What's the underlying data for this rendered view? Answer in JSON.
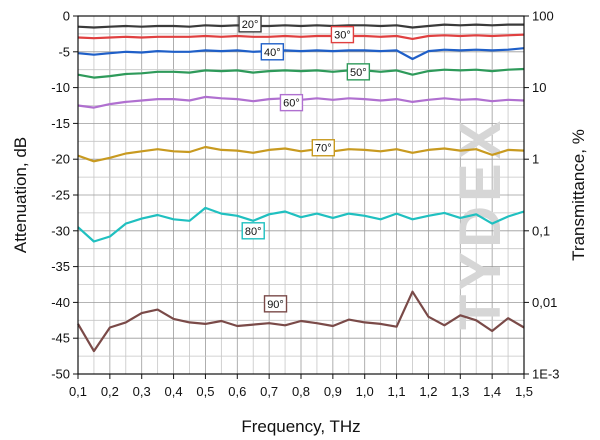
{
  "chart_data": {
    "type": "line",
    "xlabel": "Frequency, THz",
    "ylabel": "Attenuation, dB",
    "y2label": "Transmittance, %",
    "xlim": [
      0.1,
      1.5
    ],
    "ylim": [
      -50,
      0
    ],
    "x_ticks": [
      "0,1",
      "0,2",
      "0,3",
      "0,4",
      "0,5",
      "0,6",
      "0,7",
      "0,8",
      "0,9",
      "1,0",
      "1,1",
      "1,2",
      "1,3",
      "1,4",
      "1,5"
    ],
    "y_ticks": [
      "0",
      "-5",
      "-10",
      "-15",
      "-20",
      "-25",
      "-30",
      "-35",
      "-40",
      "-45",
      "-50"
    ],
    "y2_ticks": [
      "100",
      "10",
      "1",
      "0,1",
      "0,01",
      "1E-3"
    ],
    "grid": true,
    "watermark": "TYDEX",
    "x": [
      0.1,
      0.15,
      0.2,
      0.25,
      0.3,
      0.35,
      0.4,
      0.45,
      0.5,
      0.55,
      0.6,
      0.65,
      0.7,
      0.75,
      0.8,
      0.85,
      0.9,
      0.95,
      1.0,
      1.05,
      1.1,
      1.15,
      1.2,
      1.25,
      1.3,
      1.35,
      1.4,
      1.45,
      1.5
    ],
    "series": [
      {
        "name": "20°",
        "color": "#3a3a3a",
        "values": [
          -1.5,
          -1.6,
          -1.5,
          -1.4,
          -1.5,
          -1.4,
          -1.4,
          -1.5,
          -1.3,
          -1.4,
          -1.3,
          -1.4,
          -1.4,
          -1.3,
          -1.4,
          -1.3,
          -1.4,
          -1.3,
          -1.3,
          -1.4,
          -1.3,
          -1.6,
          -1.4,
          -1.2,
          -1.3,
          -1.2,
          -1.3,
          -1.2,
          -1.2
        ]
      },
      {
        "name": "30°",
        "color": "#e04040",
        "values": [
          -3.0,
          -3.1,
          -3.0,
          -2.9,
          -3.0,
          -2.9,
          -2.9,
          -2.9,
          -2.8,
          -2.9,
          -2.8,
          -2.9,
          -2.9,
          -2.8,
          -2.9,
          -2.8,
          -2.8,
          -2.8,
          -2.8,
          -2.9,
          -2.8,
          -3.2,
          -2.8,
          -2.7,
          -2.8,
          -2.7,
          -2.8,
          -2.7,
          -2.6
        ]
      },
      {
        "name": "40°",
        "color": "#1f5fc8",
        "values": [
          -5.2,
          -5.4,
          -5.2,
          -5.0,
          -5.1,
          -4.9,
          -5.0,
          -5.0,
          -4.8,
          -4.9,
          -4.8,
          -5.0,
          -4.9,
          -4.8,
          -4.9,
          -4.8,
          -4.9,
          -4.8,
          -4.8,
          -4.9,
          -4.8,
          -6.0,
          -4.9,
          -4.7,
          -4.8,
          -4.7,
          -4.8,
          -4.7,
          -4.5
        ]
      },
      {
        "name": "50°",
        "color": "#2e9a5a",
        "values": [
          -8.2,
          -8.6,
          -8.4,
          -8.1,
          -8.0,
          -7.8,
          -7.8,
          -7.9,
          -7.6,
          -7.7,
          -7.6,
          -7.9,
          -7.7,
          -7.6,
          -7.7,
          -7.6,
          -7.8,
          -7.6,
          -7.6,
          -7.8,
          -7.6,
          -8.2,
          -7.7,
          -7.5,
          -7.6,
          -7.5,
          -7.7,
          -7.5,
          -7.4
        ]
      },
      {
        "name": "60°",
        "color": "#b070d0",
        "values": [
          -12.5,
          -12.8,
          -12.3,
          -12.0,
          -11.8,
          -11.6,
          -11.6,
          -11.8,
          -11.3,
          -11.5,
          -11.6,
          -11.9,
          -11.6,
          -11.5,
          -11.7,
          -11.5,
          -11.7,
          -11.5,
          -11.6,
          -11.8,
          -11.6,
          -12.0,
          -11.7,
          -11.5,
          -11.7,
          -11.6,
          -11.9,
          -11.7,
          -11.8
        ]
      },
      {
        "name": "70°",
        "color": "#c89a20",
        "values": [
          -19.5,
          -20.3,
          -19.8,
          -19.2,
          -18.9,
          -18.6,
          -18.9,
          -19.0,
          -18.3,
          -18.7,
          -18.8,
          -19.1,
          -18.7,
          -18.5,
          -18.9,
          -18.6,
          -18.9,
          -18.6,
          -18.7,
          -18.9,
          -18.6,
          -19.1,
          -18.7,
          -18.5,
          -18.8,
          -18.6,
          -19.4,
          -18.7,
          -18.8
        ]
      },
      {
        "name": "80°",
        "color": "#20c0c0",
        "values": [
          -29.5,
          -31.5,
          -30.8,
          -29.0,
          -28.3,
          -27.8,
          -28.4,
          -28.6,
          -26.8,
          -27.6,
          -27.9,
          -28.6,
          -27.7,
          -27.3,
          -28.1,
          -27.6,
          -28.2,
          -27.6,
          -27.9,
          -28.4,
          -27.6,
          -28.4,
          -27.9,
          -27.5,
          -28.2,
          -27.7,
          -29.0,
          -28.0,
          -27.3
        ]
      },
      {
        "name": "90°",
        "color": "#7a4a48",
        "values": [
          -43.0,
          -46.8,
          -43.5,
          -42.8,
          -41.5,
          -41.0,
          -42.3,
          -42.8,
          -43.0,
          -42.6,
          -43.3,
          -43.1,
          -42.9,
          -43.2,
          -42.6,
          -42.9,
          -43.3,
          -42.4,
          -42.8,
          -43.0,
          -43.4,
          -38.5,
          -42.0,
          -43.2,
          -41.8,
          -42.5,
          -44.0,
          -42.2,
          -43.5
        ]
      }
    ]
  }
}
